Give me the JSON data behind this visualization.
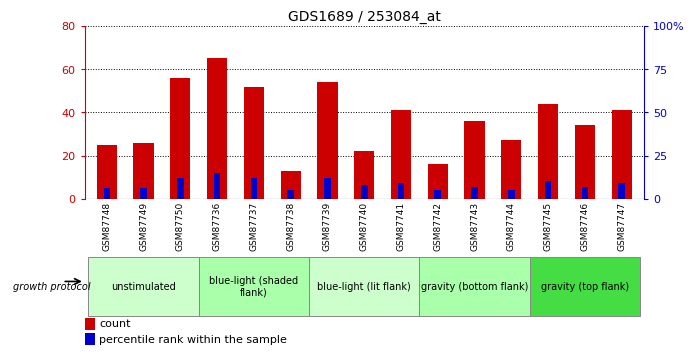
{
  "title": "GDS1689 / 253084_at",
  "samples": [
    "GSM87748",
    "GSM87749",
    "GSM87750",
    "GSM87736",
    "GSM87737",
    "GSM87738",
    "GSM87739",
    "GSM87740",
    "GSM87741",
    "GSM87742",
    "GSM87743",
    "GSM87744",
    "GSM87745",
    "GSM87746",
    "GSM87747"
  ],
  "count_values": [
    25,
    26,
    56,
    65,
    52,
    13,
    54,
    22,
    41,
    16,
    36,
    27,
    44,
    34,
    41
  ],
  "percentile_values": [
    6,
    6,
    12,
    15,
    12,
    5,
    12,
    8,
    9,
    5,
    7,
    5,
    10,
    7,
    9
  ],
  "groups": [
    {
      "label": "unstimulated",
      "start": 0,
      "end": 3,
      "color": "#ccffcc"
    },
    {
      "label": "blue-light (shaded\nflank)",
      "start": 3,
      "end": 6,
      "color": "#aaffaa"
    },
    {
      "label": "blue-light (lit flank)",
      "start": 6,
      "end": 9,
      "color": "#ccffcc"
    },
    {
      "label": "gravity (bottom flank)",
      "start": 9,
      "end": 12,
      "color": "#aaffaa"
    },
    {
      "label": "gravity (top flank)",
      "start": 12,
      "end": 15,
      "color": "#44dd44"
    }
  ],
  "ylim_left": [
    0,
    80
  ],
  "ylim_right": [
    0,
    100
  ],
  "yticks_left": [
    0,
    20,
    40,
    60,
    80
  ],
  "yticks_right": [
    0,
    25,
    50,
    75,
    100
  ],
  "red_color": "#cc0000",
  "blue_color": "#0000cc",
  "tick_label_bg": "#bbbbbb",
  "growth_protocol_label": "growth protocol",
  "legend_count": "count",
  "legend_percentile": "percentile rank within the sample"
}
